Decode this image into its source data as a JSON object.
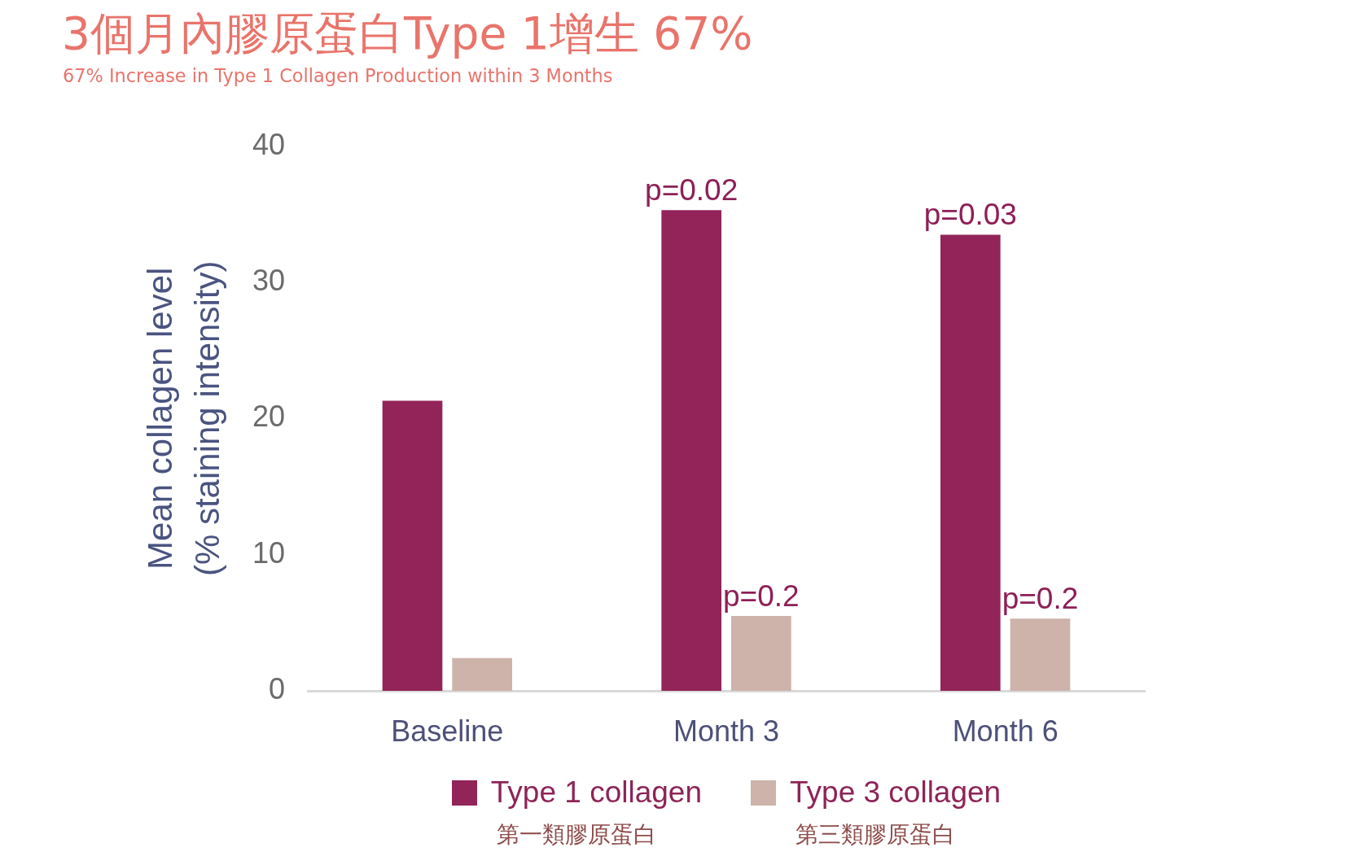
{
  "chart_data": {
    "type": "bar",
    "title": "3個月內膠原蛋白Type 1增生 67%",
    "subtitle": "67% Increase in Type 1 Collagen Production within 3 Months",
    "ylabel": "Mean collagen level\n(% staining intensity)",
    "categories": [
      "Baseline",
      "Month 3",
      "Month 6"
    ],
    "series": [
      {
        "name": "Type 1 collagen\n第一類膠原蛋白",
        "color": "#92245a",
        "values": [
          21.3,
          35.3,
          33.5
        ]
      },
      {
        "name": "Type 3 collagen\n第三類膠原蛋白",
        "color": "#cdb3aa",
        "values": [
          2.4,
          5.5,
          5.3
        ]
      }
    ],
    "annotations": [
      "p=0.02",
      "p=0.2",
      "p=0.03",
      "p=0.2"
    ],
    "ylim": [
      0,
      40
    ],
    "yticks": [
      0,
      10,
      20,
      30,
      40
    ],
    "legend": "bottom"
  }
}
